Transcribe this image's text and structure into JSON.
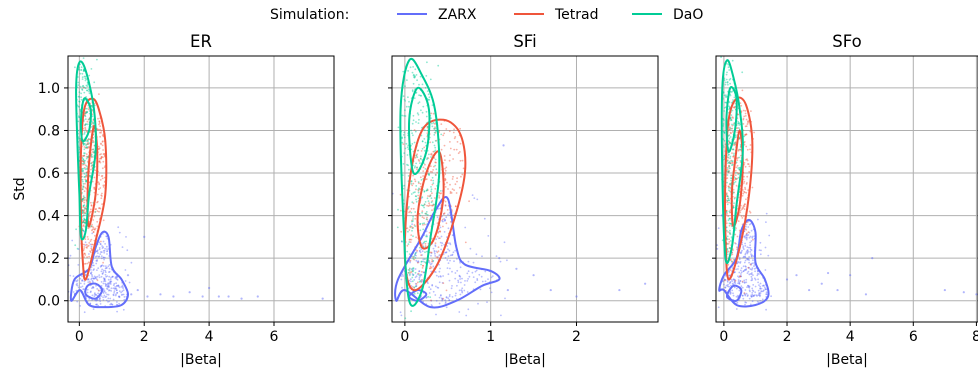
{
  "legend": {
    "title": "Simulation:",
    "entries": [
      {
        "label": "ZARX",
        "color": "#636efa"
      },
      {
        "label": "Tetrad",
        "color": "#ef553b"
      },
      {
        "label": "DaO",
        "color": "#00cc96"
      }
    ]
  },
  "chart_data": [
    {
      "type": "scatter",
      "title": "ER",
      "xlabel": "|Beta|",
      "ylabel": "Std",
      "xlim": [
        -0.35,
        7.85
      ],
      "ylim": [
        -0.1,
        1.15
      ],
      "xticks": [
        "0",
        "2",
        "4",
        "6"
      ],
      "xtick_values": [
        0,
        2,
        4,
        6
      ],
      "yticks": [
        "0.0",
        "0.2",
        "0.4",
        "0.6",
        "0.8",
        "1.0"
      ],
      "ytick_values": [
        0.0,
        0.2,
        0.4,
        0.6,
        0.8,
        1.0
      ],
      "grid": true,
      "series": [
        {
          "name": "ZARX",
          "color": "#636efa",
          "outliers": [
            [
              1.6,
              0.03
            ],
            [
              1.8,
              0.05
            ],
            [
              2.1,
              0.02
            ],
            [
              2.5,
              0.03
            ],
            [
              2.9,
              0.02
            ],
            [
              3.4,
              0.04
            ],
            [
              3.8,
              0.02
            ],
            [
              4.0,
              0.06
            ],
            [
              4.3,
              0.02
            ],
            [
              4.6,
              0.02
            ],
            [
              5.0,
              0.01
            ],
            [
              5.5,
              0.02
            ],
            [
              7.5,
              0.01
            ],
            [
              1.5,
              0.12
            ],
            [
              2.0,
              0.3
            ]
          ],
          "contours": [
            [
              [
                0.02,
                0.05
              ],
              [
                0.3,
                -0.02
              ],
              [
                0.8,
                -0.03
              ],
              [
                1.3,
                -0.02
              ],
              [
                1.5,
                0.03
              ],
              [
                1.3,
                0.1
              ],
              [
                1.0,
                0.16
              ],
              [
                0.9,
                0.3
              ],
              [
                0.7,
                0.32
              ],
              [
                0.5,
                0.25
              ],
              [
                0.3,
                0.15
              ],
              [
                -0.15,
                0.1
              ],
              [
                -0.25,
                0.0
              ],
              [
                0.02,
                0.05
              ]
            ],
            [
              [
                0.2,
                0.03
              ],
              [
                0.5,
                0.01
              ],
              [
                0.7,
                0.05
              ],
              [
                0.5,
                0.08
              ],
              [
                0.25,
                0.07
              ],
              [
                0.2,
                0.03
              ]
            ]
          ]
        },
        {
          "name": "Tetrad",
          "color": "#ef553b",
          "contours": [
            [
              [
                0.2,
                0.1
              ],
              [
                0.5,
                0.28
              ],
              [
                0.8,
                0.5
              ],
              [
                0.8,
                0.75
              ],
              [
                0.6,
                0.9
              ],
              [
                0.4,
                0.95
              ],
              [
                0.15,
                0.9
              ],
              [
                0.05,
                0.7
              ],
              [
                0.05,
                0.4
              ],
              [
                0.1,
                0.2
              ],
              [
                0.2,
                0.1
              ]
            ],
            [
              [
                0.3,
                0.35
              ],
              [
                0.5,
                0.5
              ],
              [
                0.55,
                0.7
              ],
              [
                0.45,
                0.82
              ],
              [
                0.3,
                0.65
              ],
              [
                0.25,
                0.45
              ],
              [
                0.3,
                0.35
              ]
            ]
          ]
        },
        {
          "name": "DaO",
          "color": "#00cc96",
          "contours": [
            [
              [
                0.05,
                0.3
              ],
              [
                0.2,
                0.33
              ],
              [
                0.3,
                0.5
              ],
              [
                0.5,
                0.7
              ],
              [
                0.45,
                0.9
              ],
              [
                0.2,
                1.08
              ],
              [
                0.0,
                1.12
              ],
              [
                -0.1,
                1.0
              ],
              [
                -0.05,
                0.7
              ],
              [
                0.0,
                0.5
              ],
              [
                0.05,
                0.3
              ]
            ],
            [
              [
                0.1,
                0.75
              ],
              [
                0.3,
                0.8
              ],
              [
                0.35,
                0.9
              ],
              [
                0.15,
                0.95
              ],
              [
                0.05,
                0.85
              ],
              [
                0.1,
                0.75
              ]
            ]
          ]
        }
      ]
    },
    {
      "type": "scatter",
      "title": "SFi",
      "xlabel": "|Beta|",
      "ylabel": "",
      "xlim": [
        -0.15,
        2.95
      ],
      "ylim": [
        -0.1,
        1.15
      ],
      "xticks": [
        "0",
        "1",
        "2"
      ],
      "xtick_values": [
        0,
        1,
        2
      ],
      "yticks": [
        "0.0",
        "0.2",
        "0.4",
        "0.6",
        "0.8",
        "1.0"
      ],
      "ytick_values": [
        0.0,
        0.2,
        0.4,
        0.6,
        0.8,
        1.0
      ],
      "grid": true,
      "series": [
        {
          "name": "ZARX",
          "color": "#636efa",
          "outliers": [
            [
              1.1,
              0.2
            ],
            [
              1.3,
              0.15
            ],
            [
              1.5,
              0.12
            ],
            [
              1.7,
              0.05
            ],
            [
              2.0,
              0.02
            ],
            [
              2.5,
              0.05
            ],
            [
              2.8,
              0.08
            ],
            [
              1.15,
              0.73
            ],
            [
              1.2,
              0.05
            ]
          ],
          "contours": [
            [
              [
                0.0,
                0.05
              ],
              [
                0.3,
                -0.03
              ],
              [
                0.6,
                0.0
              ],
              [
                0.9,
                0.07
              ],
              [
                1.1,
                0.1
              ],
              [
                1.0,
                0.14
              ],
              [
                0.7,
                0.17
              ],
              [
                0.6,
                0.25
              ],
              [
                0.5,
                0.48
              ],
              [
                0.35,
                0.42
              ],
              [
                0.2,
                0.3
              ],
              [
                -0.08,
                0.1
              ],
              [
                -0.1,
                0.0
              ],
              [
                0.0,
                0.05
              ]
            ],
            [
              [
                0.05,
                0.02
              ],
              [
                0.15,
                0.0
              ],
              [
                0.25,
                0.03
              ],
              [
                0.15,
                0.05
              ],
              [
                0.05,
                0.02
              ]
            ]
          ]
        },
        {
          "name": "Tetrad",
          "color": "#ef553b",
          "contours": [
            [
              [
                0.1,
                0.05
              ],
              [
                0.35,
                0.15
              ],
              [
                0.55,
                0.35
              ],
              [
                0.7,
                0.6
              ],
              [
                0.65,
                0.78
              ],
              [
                0.45,
                0.85
              ],
              [
                0.2,
                0.8
              ],
              [
                0.05,
                0.55
              ],
              [
                0.0,
                0.2
              ],
              [
                0.1,
                0.05
              ]
            ],
            [
              [
                0.2,
                0.25
              ],
              [
                0.35,
                0.3
              ],
              [
                0.45,
                0.5
              ],
              [
                0.4,
                0.7
              ],
              [
                0.25,
                0.6
              ],
              [
                0.15,
                0.4
              ],
              [
                0.2,
                0.25
              ]
            ]
          ]
        },
        {
          "name": "DaO",
          "color": "#00cc96",
          "contours": [
            [
              [
                0.05,
                0.0
              ],
              [
                0.2,
                0.05
              ],
              [
                0.3,
                0.3
              ],
              [
                0.4,
                0.6
              ],
              [
                0.35,
                0.9
              ],
              [
                0.2,
                1.06
              ],
              [
                0.05,
                1.13
              ],
              [
                -0.05,
                0.9
              ],
              [
                -0.02,
                0.4
              ],
              [
                0.05,
                0.0
              ]
            ],
            [
              [
                0.1,
                0.6
              ],
              [
                0.25,
                0.7
              ],
              [
                0.28,
                0.9
              ],
              [
                0.15,
                1.0
              ],
              [
                0.05,
                0.85
              ],
              [
                0.1,
                0.6
              ]
            ]
          ]
        }
      ]
    },
    {
      "type": "scatter",
      "title": "SFo",
      "xlabel": "|Beta|",
      "ylabel": "",
      "xlim": [
        -0.25,
        8.05
      ],
      "ylim": [
        -0.1,
        1.15
      ],
      "xticks": [
        "0",
        "2",
        "4",
        "6",
        "8"
      ],
      "xtick_values": [
        0,
        2,
        4,
        6,
        8
      ],
      "yticks": [
        "0.0",
        "0.2",
        "0.4",
        "0.6",
        "0.8",
        "1.0"
      ],
      "ytick_values": [
        0.0,
        0.2,
        0.4,
        0.6,
        0.8,
        1.0
      ],
      "grid": true,
      "series": [
        {
          "name": "ZARX",
          "color": "#636efa",
          "outliers": [
            [
              2.0,
              0.1
            ],
            [
              2.3,
              0.12
            ],
            [
              2.7,
              0.05
            ],
            [
              3.1,
              0.08
            ],
            [
              3.3,
              0.13
            ],
            [
              3.6,
              0.05
            ],
            [
              4.0,
              0.12
            ],
            [
              4.5,
              0.03
            ],
            [
              4.7,
              0.2
            ],
            [
              7.0,
              0.05
            ],
            [
              7.6,
              0.04
            ],
            [
              8.0,
              0.03
            ]
          ],
          "contours": [
            [
              [
                0.0,
                0.05
              ],
              [
                0.4,
                -0.02
              ],
              [
                1.0,
                -0.02
              ],
              [
                1.4,
                0.02
              ],
              [
                1.3,
                0.1
              ],
              [
                1.0,
                0.18
              ],
              [
                1.0,
                0.32
              ],
              [
                0.8,
                0.38
              ],
              [
                0.55,
                0.33
              ],
              [
                0.4,
                0.2
              ],
              [
                0.0,
                0.12
              ],
              [
                -0.15,
                0.05
              ],
              [
                0.0,
                0.05
              ]
            ],
            [
              [
                0.1,
                0.02
              ],
              [
                0.4,
                0.0
              ],
              [
                0.55,
                0.05
              ],
              [
                0.3,
                0.07
              ],
              [
                0.1,
                0.02
              ]
            ]
          ]
        },
        {
          "name": "Tetrad",
          "color": "#ef553b",
          "contours": [
            [
              [
                0.15,
                0.1
              ],
              [
                0.5,
                0.25
              ],
              [
                0.8,
                0.5
              ],
              [
                0.9,
                0.75
              ],
              [
                0.7,
                0.92
              ],
              [
                0.4,
                0.95
              ],
              [
                0.15,
                0.85
              ],
              [
                0.05,
                0.6
              ],
              [
                0.05,
                0.3
              ],
              [
                0.15,
                0.1
              ]
            ],
            [
              [
                0.3,
                0.35
              ],
              [
                0.5,
                0.45
              ],
              [
                0.6,
                0.65
              ],
              [
                0.5,
                0.8
              ],
              [
                0.35,
                0.65
              ],
              [
                0.25,
                0.5
              ],
              [
                0.3,
                0.35
              ]
            ]
          ]
        },
        {
          "name": "DaO",
          "color": "#00cc96",
          "contours": [
            [
              [
                0.05,
                0.2
              ],
              [
                0.25,
                0.25
              ],
              [
                0.4,
                0.45
              ],
              [
                0.6,
                0.7
              ],
              [
                0.5,
                0.9
              ],
              [
                0.3,
                1.05
              ],
              [
                0.1,
                1.13
              ],
              [
                -0.05,
                1.0
              ],
              [
                -0.05,
                0.6
              ],
              [
                0.05,
                0.2
              ]
            ],
            [
              [
                0.15,
                0.7
              ],
              [
                0.35,
                0.8
              ],
              [
                0.4,
                0.95
              ],
              [
                0.2,
                1.0
              ],
              [
                0.08,
                0.85
              ],
              [
                0.15,
                0.7
              ]
            ]
          ]
        }
      ]
    }
  ]
}
